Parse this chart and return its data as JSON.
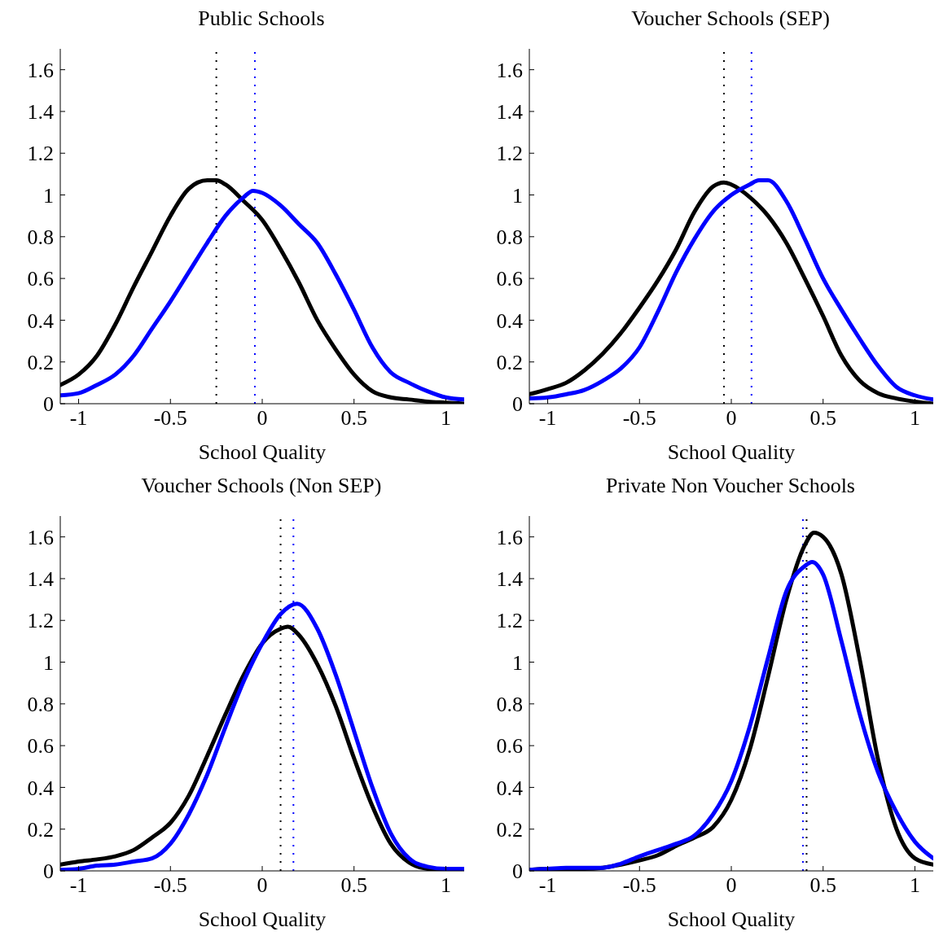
{
  "chart_data": [
    {
      "type": "line",
      "title": "Public Schools",
      "xlabel": "School Quality",
      "xlim": [
        -1.1,
        1.1
      ],
      "xticks": [
        -1,
        -0.5,
        0,
        0.5,
        1
      ],
      "ylim": [
        0,
        1.7
      ],
      "yticks": [
        0,
        0.2,
        0.4,
        0.6,
        0.8,
        1,
        1.2,
        1.4,
        1.6
      ],
      "grid": false,
      "marker": "none",
      "line_style": "solid",
      "series": [
        {
          "color": "#000000",
          "x": [
            -1.1,
            -1.0,
            -0.9,
            -0.8,
            -0.7,
            -0.6,
            -0.5,
            -0.4,
            -0.3,
            -0.25,
            -0.2,
            -0.1,
            0,
            0.1,
            0.2,
            0.3,
            0.4,
            0.5,
            0.6,
            0.7,
            0.8,
            0.9,
            1.0,
            1.1
          ],
          "values": [
            0.09,
            0.14,
            0.23,
            0.38,
            0.56,
            0.73,
            0.9,
            1.03,
            1.07,
            1.07,
            1.05,
            0.97,
            0.88,
            0.74,
            0.58,
            0.4,
            0.26,
            0.14,
            0.06,
            0.03,
            0.02,
            0.01,
            0.005,
            0
          ]
        },
        {
          "color": "#0000ff",
          "x": [
            -1.1,
            -1.0,
            -0.9,
            -0.8,
            -0.7,
            -0.6,
            -0.5,
            -0.4,
            -0.3,
            -0.2,
            -0.1,
            -0.05,
            0,
            0.1,
            0.2,
            0.3,
            0.4,
            0.5,
            0.6,
            0.7,
            0.8,
            0.9,
            1.0,
            1.1
          ],
          "values": [
            0.04,
            0.05,
            0.09,
            0.14,
            0.23,
            0.36,
            0.49,
            0.63,
            0.77,
            0.9,
            0.99,
            1.02,
            1.01,
            0.95,
            0.86,
            0.77,
            0.62,
            0.45,
            0.27,
            0.15,
            0.1,
            0.06,
            0.03,
            0.02
          ]
        }
      ],
      "ref_lines": [
        {
          "axis": "x",
          "value": -0.25,
          "color": "#000000",
          "line_style": "dotted"
        },
        {
          "axis": "x",
          "value": -0.04,
          "color": "#0000ff",
          "line_style": "dotted"
        }
      ]
    },
    {
      "type": "line",
      "title": "Voucher Schools (SEP)",
      "xlabel": "School Quality",
      "xlim": [
        -1.1,
        1.1
      ],
      "xticks": [
        -1,
        -0.5,
        0,
        0.5,
        1
      ],
      "ylim": [
        0,
        1.7
      ],
      "yticks": [
        0,
        0.2,
        0.4,
        0.6,
        0.8,
        1,
        1.2,
        1.4,
        1.6
      ],
      "grid": false,
      "marker": "none",
      "line_style": "solid",
      "series": [
        {
          "color": "#000000",
          "x": [
            -1.1,
            -1.0,
            -0.9,
            -0.8,
            -0.7,
            -0.6,
            -0.5,
            -0.4,
            -0.3,
            -0.2,
            -0.1,
            -0.04,
            0,
            0.1,
            0.2,
            0.3,
            0.4,
            0.5,
            0.6,
            0.7,
            0.8,
            0.9,
            1.0,
            1.1
          ],
          "values": [
            0.045,
            0.07,
            0.1,
            0.16,
            0.24,
            0.34,
            0.46,
            0.59,
            0.74,
            0.92,
            1.04,
            1.06,
            1.05,
            0.99,
            0.9,
            0.77,
            0.6,
            0.42,
            0.23,
            0.11,
            0.05,
            0.025,
            0.01,
            0
          ]
        },
        {
          "color": "#0000ff",
          "x": [
            -1.1,
            -1.0,
            -0.9,
            -0.8,
            -0.7,
            -0.6,
            -0.5,
            -0.4,
            -0.3,
            -0.2,
            -0.1,
            0,
            0.1,
            0.15,
            0.2,
            0.3,
            0.4,
            0.5,
            0.6,
            0.7,
            0.8,
            0.9,
            1.0,
            1.1
          ],
          "values": [
            0.025,
            0.03,
            0.045,
            0.066,
            0.11,
            0.17,
            0.27,
            0.44,
            0.63,
            0.79,
            0.92,
            1.0,
            1.05,
            1.07,
            1.07,
            0.97,
            0.79,
            0.6,
            0.45,
            0.31,
            0.18,
            0.08,
            0.04,
            0.02
          ]
        }
      ],
      "ref_lines": [
        {
          "axis": "x",
          "value": -0.04,
          "color": "#000000",
          "line_style": "dotted"
        },
        {
          "axis": "x",
          "value": 0.11,
          "color": "#0000ff",
          "line_style": "dotted"
        }
      ]
    },
    {
      "type": "line",
      "title": "Voucher Schools (Non SEP)",
      "xlabel": "School Quality",
      "xlim": [
        -1.1,
        1.1
      ],
      "xticks": [
        -1,
        -0.5,
        0,
        0.5,
        1
      ],
      "ylim": [
        0,
        1.7
      ],
      "yticks": [
        0,
        0.2,
        0.4,
        0.6,
        0.8,
        1,
        1.2,
        1.4,
        1.6
      ],
      "grid": false,
      "marker": "none",
      "line_style": "solid",
      "series": [
        {
          "color": "#000000",
          "x": [
            -1.1,
            -1.0,
            -0.9,
            -0.8,
            -0.7,
            -0.6,
            -0.5,
            -0.4,
            -0.3,
            -0.2,
            -0.1,
            0,
            0.1,
            0.14,
            0.2,
            0.3,
            0.4,
            0.5,
            0.6,
            0.7,
            0.8,
            0.9,
            1.0,
            1.1
          ],
          "values": [
            0.03,
            0.045,
            0.055,
            0.07,
            0.1,
            0.16,
            0.23,
            0.36,
            0.55,
            0.75,
            0.94,
            1.09,
            1.16,
            1.17,
            1.13,
            0.99,
            0.79,
            0.54,
            0.31,
            0.13,
            0.04,
            0.01,
            0.005,
            0
          ]
        },
        {
          "color": "#0000ff",
          "x": [
            -1.1,
            -1.0,
            -0.9,
            -0.8,
            -0.7,
            -0.6,
            -0.5,
            -0.4,
            -0.3,
            -0.2,
            -0.1,
            0,
            0.1,
            0.19,
            0.3,
            0.4,
            0.5,
            0.6,
            0.7,
            0.8,
            0.9,
            1.0,
            1.1
          ],
          "values": [
            0.005,
            0.01,
            0.025,
            0.03,
            0.045,
            0.06,
            0.13,
            0.27,
            0.46,
            0.69,
            0.91,
            1.09,
            1.23,
            1.28,
            1.16,
            0.94,
            0.67,
            0.4,
            0.18,
            0.06,
            0.02,
            0.01,
            0.01
          ]
        }
      ],
      "ref_lines": [
        {
          "axis": "x",
          "value": 0.1,
          "color": "#000000",
          "line_style": "dotted"
        },
        {
          "axis": "x",
          "value": 0.17,
          "color": "#0000ff",
          "line_style": "dotted"
        }
      ]
    },
    {
      "type": "line",
      "title": "Private Non Voucher Schools",
      "xlabel": "School Quality",
      "xlim": [
        -1.1,
        1.1
      ],
      "xticks": [
        -1,
        -0.5,
        0,
        0.5,
        1
      ],
      "ylim": [
        0,
        1.7
      ],
      "yticks": [
        0,
        0.2,
        0.4,
        0.6,
        0.8,
        1,
        1.2,
        1.4,
        1.6
      ],
      "grid": false,
      "marker": "none",
      "line_style": "solid",
      "series": [
        {
          "color": "#000000",
          "x": [
            -1.1,
            -1.0,
            -0.9,
            -0.8,
            -0.7,
            -0.6,
            -0.5,
            -0.4,
            -0.3,
            -0.2,
            -0.1,
            0,
            0.1,
            0.2,
            0.3,
            0.4,
            0.45,
            0.5,
            0.6,
            0.7,
            0.8,
            0.9,
            1.0,
            1.1
          ],
          "values": [
            0.005,
            0.01,
            0.01,
            0.01,
            0.015,
            0.03,
            0.05,
            0.075,
            0.12,
            0.16,
            0.21,
            0.34,
            0.58,
            0.93,
            1.3,
            1.56,
            1.62,
            1.6,
            1.42,
            1.01,
            0.53,
            0.2,
            0.06,
            0.03
          ]
        },
        {
          "color": "#0000ff",
          "x": [
            -1.1,
            -1.0,
            -0.9,
            -0.8,
            -0.7,
            -0.6,
            -0.5,
            -0.4,
            -0.3,
            -0.2,
            -0.1,
            0,
            0.1,
            0.2,
            0.3,
            0.4,
            0.44,
            0.5,
            0.6,
            0.7,
            0.8,
            0.9,
            1.0,
            1.1
          ],
          "values": [
            0.005,
            0.01,
            0.015,
            0.015,
            0.015,
            0.035,
            0.07,
            0.1,
            0.13,
            0.17,
            0.27,
            0.43,
            0.69,
            1.02,
            1.34,
            1.46,
            1.48,
            1.42,
            1.1,
            0.75,
            0.47,
            0.28,
            0.14,
            0.06
          ]
        }
      ],
      "ref_lines": [
        {
          "axis": "x",
          "value": 0.41,
          "color": "#000000",
          "line_style": "dotted"
        },
        {
          "axis": "x",
          "value": 0.39,
          "color": "#0000ff",
          "line_style": "dotted"
        }
      ]
    }
  ]
}
